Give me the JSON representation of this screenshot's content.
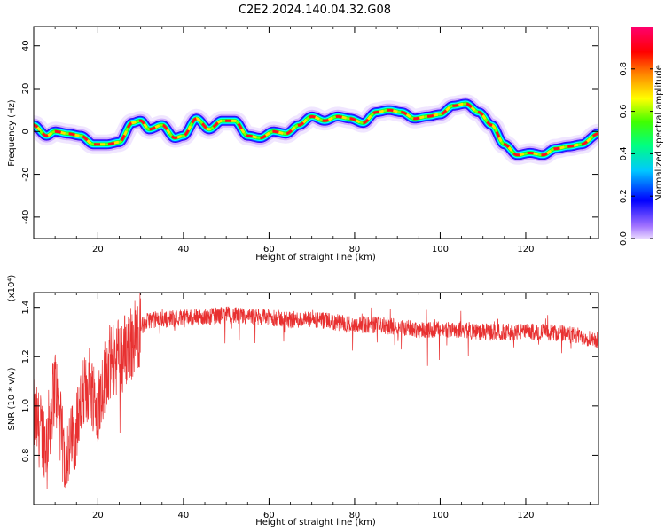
{
  "figure": {
    "title": "C2E2.2024.140.04.32.G08"
  },
  "chart_data": [
    {
      "type": "heatmap",
      "xlabel": "Height of straight line (km)",
      "ylabel": "Frequency (Hz)",
      "xlim": [
        5,
        137
      ],
      "ylim": [
        -50,
        49
      ],
      "xticks": [
        20,
        40,
        60,
        80,
        100,
        120
      ],
      "yticks": [
        -40,
        -20,
        0,
        20,
        40
      ],
      "grid": false,
      "ridge": {
        "x": [
          5,
          8,
          10,
          13,
          16,
          19,
          22,
          25,
          28,
          30,
          32,
          35,
          38,
          40,
          43,
          46,
          49,
          52,
          55,
          58,
          61,
          64,
          67,
          70,
          73,
          76,
          79,
          82,
          85,
          88,
          91,
          94,
          97,
          100,
          103,
          106,
          109,
          112,
          115,
          118,
          121,
          124,
          127,
          130,
          133,
          137
        ],
        "y": [
          3,
          -2,
          0,
          -1,
          -2,
          -6,
          -6,
          -5,
          4,
          5,
          1,
          3,
          -3,
          -2,
          6,
          1,
          5,
          5,
          -2,
          -3,
          0,
          -1,
          3,
          7,
          5,
          7,
          6,
          4,
          9,
          10,
          9,
          6,
          7,
          8,
          12,
          13,
          9,
          3,
          -6,
          -11,
          -10,
          -11,
          -8,
          -7,
          -6,
          -1
        ]
      },
      "colorbar": {
        "label": "Normalized spectral amplitude",
        "range": [
          0,
          1
        ],
        "ticks": [
          0.0,
          0.2,
          0.4,
          0.6,
          0.8
        ],
        "colormap": [
          "#c8a8ff",
          "#0000ff",
          "#00ffff",
          "#00ff00",
          "#ffff00",
          "#ff0000",
          "#ff0060"
        ]
      }
    },
    {
      "type": "line",
      "xlabel": "Height of straight line (km)",
      "ylabel": "SNR (10 * v/v)",
      "yscale_note": "(x10⁴)",
      "xlim": [
        5,
        137
      ],
      "ylim": [
        0.6,
        1.46
      ],
      "xticks": [
        20,
        40,
        60,
        80,
        100,
        120
      ],
      "yticks": [
        0.8,
        1.0,
        1.2,
        1.4
      ],
      "color": "#e83030",
      "grid": false,
      "trend": {
        "x": [
          5,
          8,
          10,
          12,
          14,
          16,
          18,
          20,
          22,
          24,
          26,
          28,
          30,
          32,
          35,
          40,
          45,
          50,
          55,
          60,
          65,
          70,
          75,
          80,
          85,
          90,
          95,
          100,
          105,
          110,
          115,
          120,
          125,
          130,
          137
        ],
        "y": [
          0.95,
          0.85,
          1.1,
          0.8,
          0.85,
          1.0,
          1.1,
          1.0,
          1.15,
          1.2,
          1.22,
          1.26,
          1.32,
          1.35,
          1.35,
          1.36,
          1.36,
          1.37,
          1.36,
          1.36,
          1.35,
          1.35,
          1.34,
          1.33,
          1.33,
          1.32,
          1.31,
          1.31,
          1.31,
          1.3,
          1.3,
          1.3,
          1.3,
          1.29,
          1.27
        ]
      }
    }
  ]
}
